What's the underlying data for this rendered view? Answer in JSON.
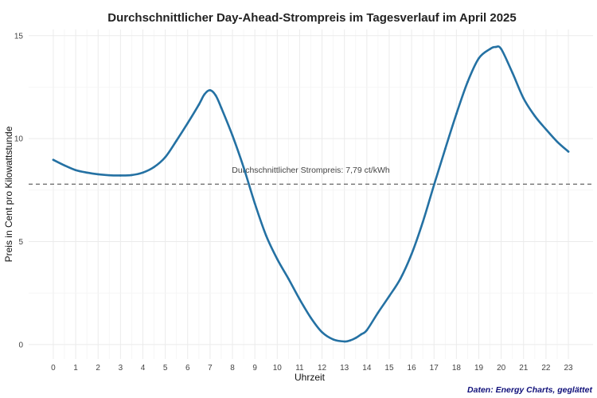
{
  "chart_data": {
    "type": "line",
    "title": "Durchschnittlicher Day-Ahead-Strompreis im Tagesverlauf im April 2025",
    "xlabel": "Uhrzeit",
    "ylabel": "Preis in Cent pro Kilowattstunde",
    "xlim": [
      -1.1,
      24.1
    ],
    "ylim": [
      -0.7,
      15.3
    ],
    "x_ticks": [
      "0",
      "1",
      "2",
      "3",
      "4",
      "5",
      "6",
      "7",
      "8",
      "9",
      "10",
      "11",
      "12",
      "13",
      "14",
      "15",
      "16",
      "17",
      "18",
      "19",
      "20",
      "21",
      "22",
      "23"
    ],
    "y_ticks": [
      0,
      5,
      10,
      15
    ],
    "grid": true,
    "series": [
      {
        "color": "#2471a3",
        "x": [
          0,
          0.5,
          1,
          1.5,
          2,
          2.5,
          3,
          3.5,
          4,
          4.5,
          5,
          5.5,
          6,
          6.5,
          6.75,
          7,
          7.25,
          7.5,
          8,
          8.5,
          9,
          9.5,
          10,
          10.5,
          11,
          11.5,
          12,
          12.5,
          13,
          13.25,
          13.5,
          13.75,
          14,
          14.5,
          15,
          15.5,
          16,
          16.5,
          17,
          17.5,
          18,
          18.5,
          19,
          19.5,
          19.75,
          20,
          20.5,
          21,
          21.5,
          22,
          22.5,
          23
        ],
        "y": [
          8.97,
          8.7,
          8.47,
          8.35,
          8.27,
          8.22,
          8.21,
          8.23,
          8.35,
          8.62,
          9.1,
          9.9,
          10.75,
          11.65,
          12.15,
          12.35,
          12.1,
          11.5,
          10.15,
          8.6,
          6.85,
          5.3,
          4.15,
          3.2,
          2.2,
          1.3,
          0.6,
          0.25,
          0.15,
          0.2,
          0.32,
          0.5,
          0.7,
          1.55,
          2.35,
          3.2,
          4.4,
          5.95,
          7.75,
          9.5,
          11.2,
          12.75,
          13.9,
          14.35,
          14.45,
          14.35,
          13.2,
          11.95,
          11.1,
          10.45,
          9.85,
          9.37
        ]
      }
    ],
    "reference_line": {
      "value": 7.79,
      "style": "dashed",
      "color": "#555555",
      "label": "Durchschnittlicher Strompreis: 7,79 ct/kWh",
      "label_x": 11.5,
      "label_y": 8.35
    },
    "caption": "Daten: Energy Charts, geglättet"
  }
}
